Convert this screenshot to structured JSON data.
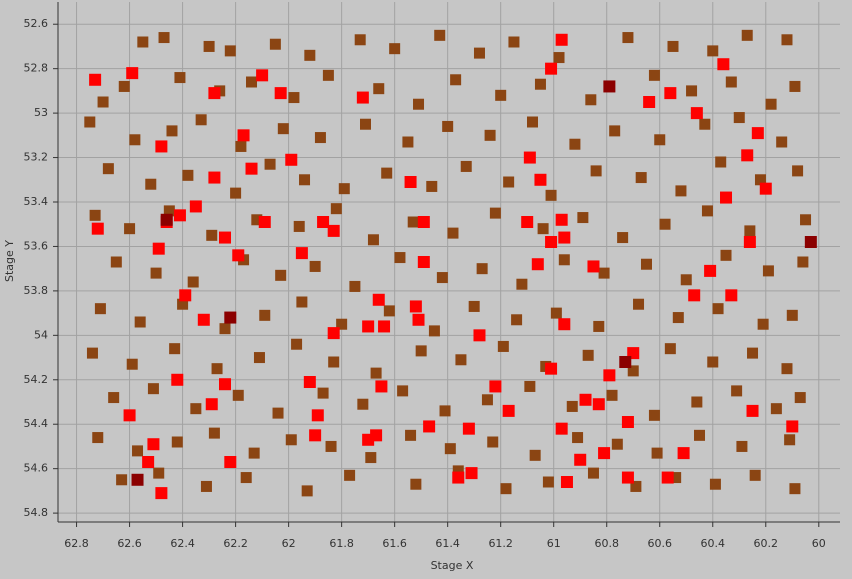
{
  "chart_data": {
    "type": "scatter",
    "x_label": "Stage X",
    "y_label": "Stage Y",
    "xlim": [
      62.87,
      59.92
    ],
    "ylim": [
      54.84,
      52.5
    ],
    "xticks": [
      62.8,
      62.6,
      62.4,
      62.2,
      62,
      61.8,
      61.6,
      61.4,
      61.2,
      61,
      60.8,
      60.6,
      60.4,
      60.2,
      60
    ],
    "yticks": [
      52.6,
      52.8,
      53,
      53.2,
      53.4,
      53.6,
      53.8,
      54,
      54.2,
      54.4,
      54.6,
      54.8
    ],
    "grid": true,
    "marker": "square",
    "series": [
      {
        "color": "#8b4513",
        "x": [
          62.55,
          62.47,
          62.3,
          62.22,
          62.05,
          61.92,
          61.73,
          61.6,
          61.43,
          61.28,
          61.15,
          60.98,
          60.72,
          60.55,
          60.4,
          60.27,
          60.12,
          62.7,
          62.62,
          62.41,
          62.26,
          62.14,
          61.98,
          61.85,
          61.66,
          61.51,
          61.37,
          61.2,
          61.05,
          60.86,
          60.62,
          60.48,
          60.33,
          60.18,
          60.09,
          62.75,
          62.58,
          62.44,
          62.33,
          62.18,
          62.02,
          61.88,
          61.71,
          61.55,
          61.4,
          61.24,
          61.08,
          60.92,
          60.77,
          60.6,
          60.43,
          60.3,
          60.14,
          62.68,
          62.52,
          62.38,
          62.2,
          62.07,
          61.94,
          61.79,
          61.63,
          61.46,
          61.33,
          61.17,
          61.01,
          60.84,
          60.67,
          60.52,
          60.37,
          60.22,
          60.08,
          62.73,
          62.6,
          62.45,
          62.29,
          62.12,
          61.96,
          61.82,
          61.68,
          61.53,
          61.38,
          61.22,
          61.04,
          60.89,
          60.74,
          60.58,
          60.42,
          60.26,
          60.05,
          62.65,
          62.5,
          62.36,
          62.17,
          62.03,
          61.9,
          61.75,
          61.58,
          61.42,
          61.27,
          61.12,
          60.96,
          60.81,
          60.65,
          60.5,
          60.35,
          60.19,
          60.06,
          62.71,
          62.56,
          62.4,
          62.24,
          62.09,
          61.95,
          61.8,
          61.62,
          61.45,
          61.3,
          61.14,
          60.99,
          60.83,
          60.68,
          60.53,
          60.38,
          60.21,
          60.1,
          62.74,
          62.59,
          62.43,
          62.27,
          62.11,
          61.97,
          61.83,
          61.67,
          61.5,
          61.35,
          61.19,
          61.03,
          60.87,
          60.7,
          60.56,
          60.4,
          60.25,
          60.12,
          62.66,
          62.51,
          62.35,
          62.19,
          62.04,
          61.87,
          61.72,
          61.57,
          61.41,
          61.25,
          61.09,
          60.93,
          60.78,
          60.62,
          60.46,
          60.31,
          60.16,
          60.07,
          62.72,
          62.57,
          62.42,
          62.28,
          62.13,
          61.99,
          61.84,
          61.69,
          61.54,
          61.39,
          61.23,
          61.07,
          60.91,
          60.76,
          60.61,
          60.45,
          60.29,
          60.11,
          62.63,
          62.49,
          62.31,
          62.16,
          61.93,
          61.77,
          61.52,
          61.36,
          61.18,
          61.02,
          60.85,
          60.69,
          60.54,
          60.39,
          60.24,
          60.09
        ],
        "values": [
          52.68,
          52.66,
          52.7,
          52.72,
          52.69,
          52.74,
          52.67,
          52.71,
          52.65,
          52.73,
          52.68,
          52.75,
          52.66,
          52.7,
          52.72,
          52.65,
          52.67,
          52.95,
          52.88,
          52.84,
          52.9,
          52.86,
          52.93,
          52.83,
          52.89,
          52.96,
          52.85,
          52.92,
          52.87,
          52.94,
          52.83,
          52.9,
          52.86,
          52.96,
          52.88,
          53.04,
          53.12,
          53.08,
          53.03,
          53.15,
          53.07,
          53.11,
          53.05,
          53.13,
          53.06,
          53.1,
          53.04,
          53.14,
          53.08,
          53.12,
          53.05,
          53.02,
          53.13,
          53.25,
          53.32,
          53.28,
          53.36,
          53.23,
          53.3,
          53.34,
          53.27,
          53.33,
          53.24,
          53.31,
          53.37,
          53.26,
          53.29,
          53.35,
          53.22,
          53.3,
          53.26,
          53.46,
          53.52,
          53.44,
          53.55,
          53.48,
          53.51,
          53.43,
          53.57,
          53.49,
          53.54,
          53.45,
          53.52,
          53.47,
          53.56,
          53.5,
          53.44,
          53.53,
          53.48,
          53.67,
          53.72,
          53.76,
          53.66,
          53.73,
          53.69,
          53.78,
          53.65,
          53.74,
          53.7,
          53.77,
          53.66,
          53.72,
          53.68,
          53.75,
          53.64,
          53.71,
          53.67,
          53.88,
          53.94,
          53.86,
          53.97,
          53.91,
          53.85,
          53.95,
          53.89,
          53.98,
          53.87,
          53.93,
          53.9,
          53.96,
          53.86,
          53.92,
          53.88,
          53.95,
          53.91,
          54.08,
          54.13,
          54.06,
          54.15,
          54.1,
          54.04,
          54.12,
          54.17,
          54.07,
          54.11,
          54.05,
          54.14,
          54.09,
          54.16,
          54.06,
          54.12,
          54.08,
          54.15,
          54.28,
          54.24,
          54.33,
          54.27,
          54.35,
          54.26,
          54.31,
          54.25,
          54.34,
          54.29,
          54.23,
          54.32,
          54.27,
          54.36,
          54.3,
          54.25,
          54.33,
          54.28,
          54.46,
          54.52,
          54.48,
          54.44,
          54.53,
          54.47,
          54.5,
          54.55,
          54.45,
          54.51,
          54.48,
          54.54,
          54.46,
          54.49,
          54.53,
          54.45,
          54.5,
          54.47,
          54.65,
          54.62,
          54.68,
          54.64,
          54.7,
          54.63,
          54.67,
          54.61,
          54.69,
          54.66,
          54.62,
          54.68,
          54.64,
          54.67,
          54.63,
          54.69
        ]
      },
      {
        "color": "#ff0000",
        "x": [
          62.73,
          62.59,
          62.1,
          62.28,
          62.03,
          61.72,
          60.97,
          61.01,
          60.36,
          60.64,
          60.56,
          60.46,
          60.23,
          62.17,
          62.48,
          61.99,
          61.09,
          62.14,
          60.27,
          62.28,
          61.54,
          60.2,
          60.35,
          61.05,
          62.35,
          62.72,
          62.46,
          62.41,
          62.09,
          61.87,
          61.83,
          61.49,
          61.1,
          60.97,
          62.24,
          62.49,
          61.95,
          61.01,
          60.96,
          60.26,
          62.19,
          61.49,
          61.06,
          60.85,
          60.41,
          62.39,
          60.33,
          60.47,
          61.66,
          61.52,
          61.51,
          62.32,
          61.7,
          61.64,
          60.96,
          61.28,
          61.83,
          60.7,
          61.01,
          60.79,
          62.42,
          62.24,
          61.92,
          61.65,
          61.22,
          62.29,
          60.88,
          60.83,
          62.6,
          61.89,
          61.47,
          61.32,
          61.17,
          60.97,
          60.25,
          60.1,
          60.72,
          61.9,
          61.7,
          61.67,
          62.51,
          62.53,
          62.22,
          60.9,
          60.81,
          60.51,
          61.31,
          61.36,
          60.95,
          60.72,
          60.57,
          62.48
        ],
        "values": [
          52.85,
          52.82,
          52.83,
          52.91,
          52.91,
          52.93,
          52.67,
          52.8,
          52.78,
          52.95,
          52.91,
          53.0,
          53.09,
          53.1,
          53.15,
          53.21,
          53.2,
          53.25,
          53.19,
          53.29,
          53.31,
          53.34,
          53.38,
          53.3,
          53.42,
          53.52,
          53.49,
          53.46,
          53.49,
          53.49,
          53.53,
          53.49,
          53.49,
          53.48,
          53.56,
          53.61,
          53.63,
          53.58,
          53.56,
          53.58,
          53.64,
          53.67,
          53.68,
          53.69,
          53.71,
          53.82,
          53.82,
          53.82,
          53.84,
          53.87,
          53.93,
          53.93,
          53.96,
          53.96,
          53.95,
          54.0,
          53.99,
          54.08,
          54.15,
          54.18,
          54.2,
          54.22,
          54.21,
          54.23,
          54.23,
          54.31,
          54.29,
          54.31,
          54.36,
          54.36,
          54.41,
          54.42,
          54.34,
          54.42,
          54.34,
          54.41,
          54.39,
          54.45,
          54.47,
          54.45,
          54.49,
          54.57,
          54.57,
          54.56,
          54.53,
          54.53,
          54.62,
          54.64,
          54.66,
          54.64,
          54.64,
          54.71
        ]
      },
      {
        "color": "#8b0000",
        "x": [
          62.46,
          62.22,
          60.79,
          60.03,
          60.73,
          62.57
        ],
        "values": [
          53.48,
          53.92,
          52.88,
          53.58,
          54.12,
          54.65
        ]
      }
    ]
  }
}
